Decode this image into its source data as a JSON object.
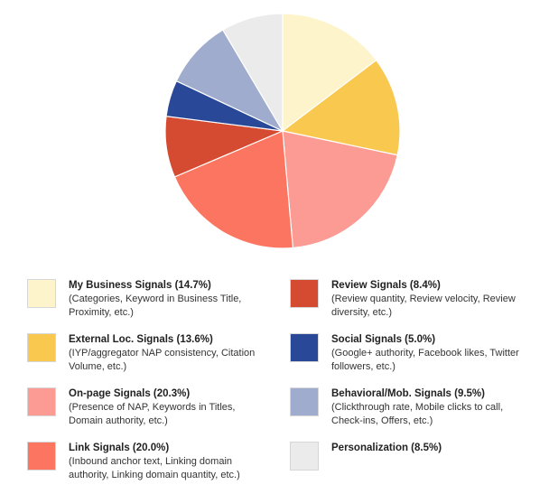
{
  "chart_data": {
    "type": "pie",
    "title": "",
    "series": [
      {
        "name": "My Business Signals",
        "value": 14.7,
        "label": "My Business Signals (14.7%)",
        "desc": "(Categories, Keyword in Business Title, Proximity, etc.)",
        "color": "#fdf4cb"
      },
      {
        "name": "External Loc. Signals",
        "value": 13.6,
        "label": "External Loc. Signals (13.6%)",
        "desc": "(IYP/aggregator NAP consistency, Citation Volume, etc.)",
        "color": "#f9c84e"
      },
      {
        "name": "On-page Signals",
        "value": 20.3,
        "label": "On-page Signals (20.3%)",
        "desc": "(Presence of NAP, Keywords in Titles, Domain authority, etc.)",
        "color": "#fc9b94"
      },
      {
        "name": "Link Signals",
        "value": 20.0,
        "label": "Link Signals (20.0%)",
        "desc": "(Inbound anchor text, Linking domain authority, Linking domain quantity, etc.)",
        "color": "#fb7560"
      },
      {
        "name": "Review Signals",
        "value": 8.4,
        "label": "Review Signals (8.4%)",
        "desc": "(Review quantity, Review velocity, Review diversity, etc.)",
        "color": "#d54b32"
      },
      {
        "name": "Social Signals",
        "value": 5.0,
        "label": "Social Signals (5.0%)",
        "desc": "(Google+ authority, Facebook likes, Twitter followers, etc.)",
        "color": "#2a4898"
      },
      {
        "name": "Behavioral/Mob. Signals",
        "value": 9.5,
        "label": "Behavioral/Mob. Signals (9.5%)",
        "desc": "(Clickthrough rate, Mobile clicks to call, Check-ins, Offers, etc.)",
        "color": "#9faccd"
      },
      {
        "name": "Personalization",
        "value": 8.5,
        "label": "Personalization (8.5%)",
        "desc": "",
        "color": "#ebebeb"
      }
    ],
    "legend_placement": "bottom, two columns",
    "start_angle": "12 o'clock, clockwise"
  }
}
